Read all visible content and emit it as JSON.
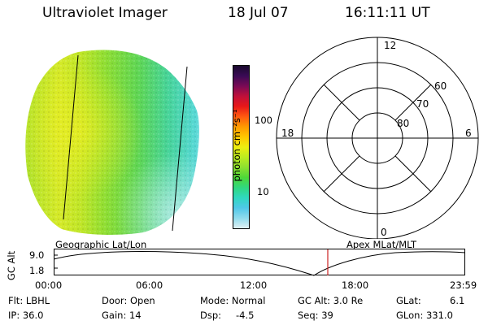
{
  "header": {
    "title": "Ultraviolet Imager",
    "date": "18 Jul 07",
    "time": "16:11:11 UT"
  },
  "colorbar": {
    "unit_label": "photon cm⁻²s⁻¹",
    "ticks": [
      "100",
      "10"
    ],
    "scale": "log",
    "colors": [
      "#1a0a2e",
      "#3a0a55",
      "#7a0a55",
      "#c0103a",
      "#e81818",
      "#ff5a10",
      "#ff9a00",
      "#ffc800",
      "#eeee10",
      "#bcec20",
      "#8ce030",
      "#4ed838",
      "#30d880",
      "#30d8c0",
      "#50c8e8",
      "#90dced",
      "#e0f0f4"
    ]
  },
  "polar_grid": {
    "mlt_labels": [
      "12",
      "18",
      "6",
      "0"
    ],
    "mlat_labels": [
      "60",
      "70",
      "80"
    ]
  },
  "timeline": {
    "left_label": "Geographic Lat/Lon",
    "right_label": "Apex MLat/MLT",
    "axis_title": "GC Alt",
    "y_ticks": [
      "9.0",
      "1.8"
    ],
    "x_ticks": [
      "00:00",
      "06:00",
      "12:00",
      "18:00",
      "23:59"
    ],
    "current_time_marker": "16:11",
    "marker_color": "#cc2222"
  },
  "info": {
    "row1": [
      "Flt: LBHL",
      "Door: Open",
      "Mode: Normal",
      "GC Alt: 3.0 Re",
      "GLat:",
      "6.1"
    ],
    "row2": [
      "IP: 36.0",
      "Gain: 14",
      "Dsp:",
      "-4.5",
      "Seq: 39",
      "GLon: 331.0"
    ]
  }
}
